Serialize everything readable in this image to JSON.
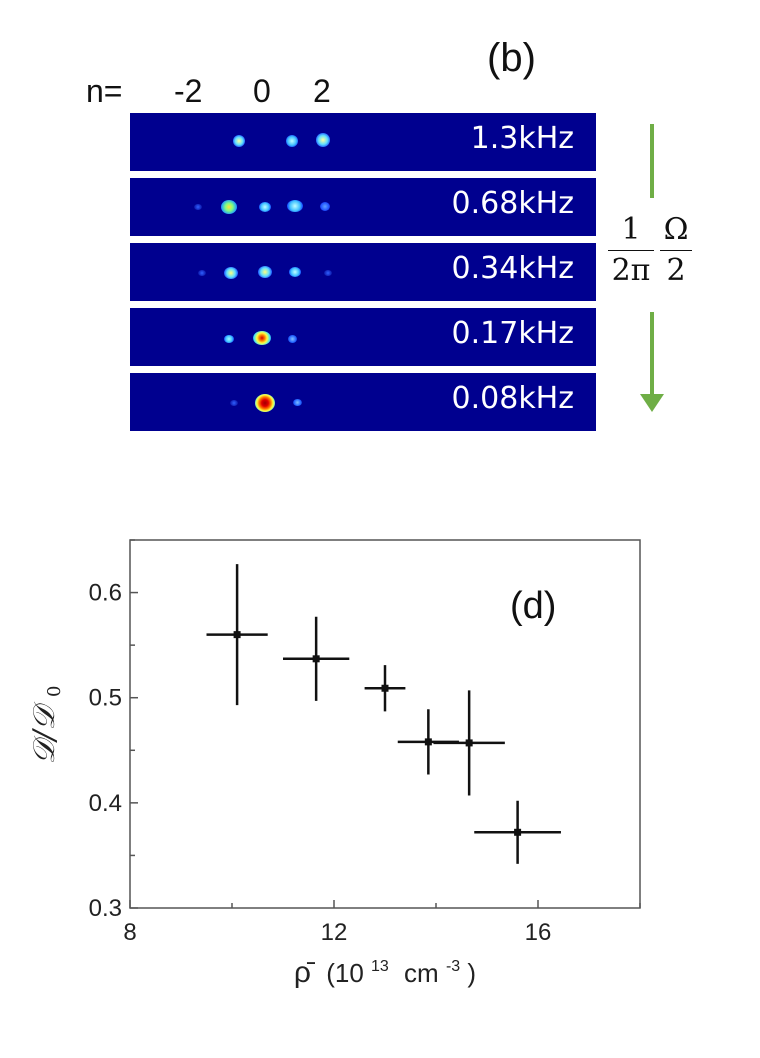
{
  "panel_b": {
    "label": "(b)",
    "n_prefix": "n=",
    "n_ticks": [
      "-2",
      "0",
      "2"
    ],
    "rows": [
      {
        "label": "1.3kHz"
      },
      {
        "label": "0.68kHz"
      },
      {
        "label": "0.34kHz"
      },
      {
        "label": "0.17kHz"
      },
      {
        "label": "0.08kHz"
      }
    ],
    "side_fraction": {
      "left_num": "1",
      "left_den": "2π",
      "right_num": "Ω",
      "right_den": "2"
    },
    "arrow_color": "#6fae46"
  },
  "chart_data": {
    "type": "scatter",
    "panel_label": "(d)",
    "xlabel_symbol": "ρ̄",
    "xlabel_paren_open": "(10",
    "xlabel_exp1": "13",
    "xlabel_unit": "cm",
    "xlabel_exp2": "-3",
    "xlabel_paren_close": ")",
    "ylabel": "𝒟/𝒟",
    "ylabel_sub": "0",
    "xlim": [
      8,
      18
    ],
    "ylim": [
      0.3,
      0.65
    ],
    "x_ticks": [
      "8",
      "12",
      "16"
    ],
    "y_ticks": [
      "0.3",
      "0.4",
      "0.5",
      "0.6"
    ],
    "grid": false,
    "points": [
      {
        "x": 10.1,
        "y": 0.56,
        "xerr": 0.6,
        "yerr": 0.067
      },
      {
        "x": 11.65,
        "y": 0.537,
        "xerr": 0.65,
        "yerr": 0.04
      },
      {
        "x": 13.0,
        "y": 0.509,
        "xerr": 0.4,
        "yerr": 0.022
      },
      {
        "x": 13.85,
        "y": 0.458,
        "xerr": 0.6,
        "yerr": 0.031
      },
      {
        "x": 14.65,
        "y": 0.457,
        "xerr": 0.7,
        "yerr": 0.05
      },
      {
        "x": 15.6,
        "y": 0.372,
        "xerr": 0.85,
        "yerr": 0.03
      }
    ]
  }
}
